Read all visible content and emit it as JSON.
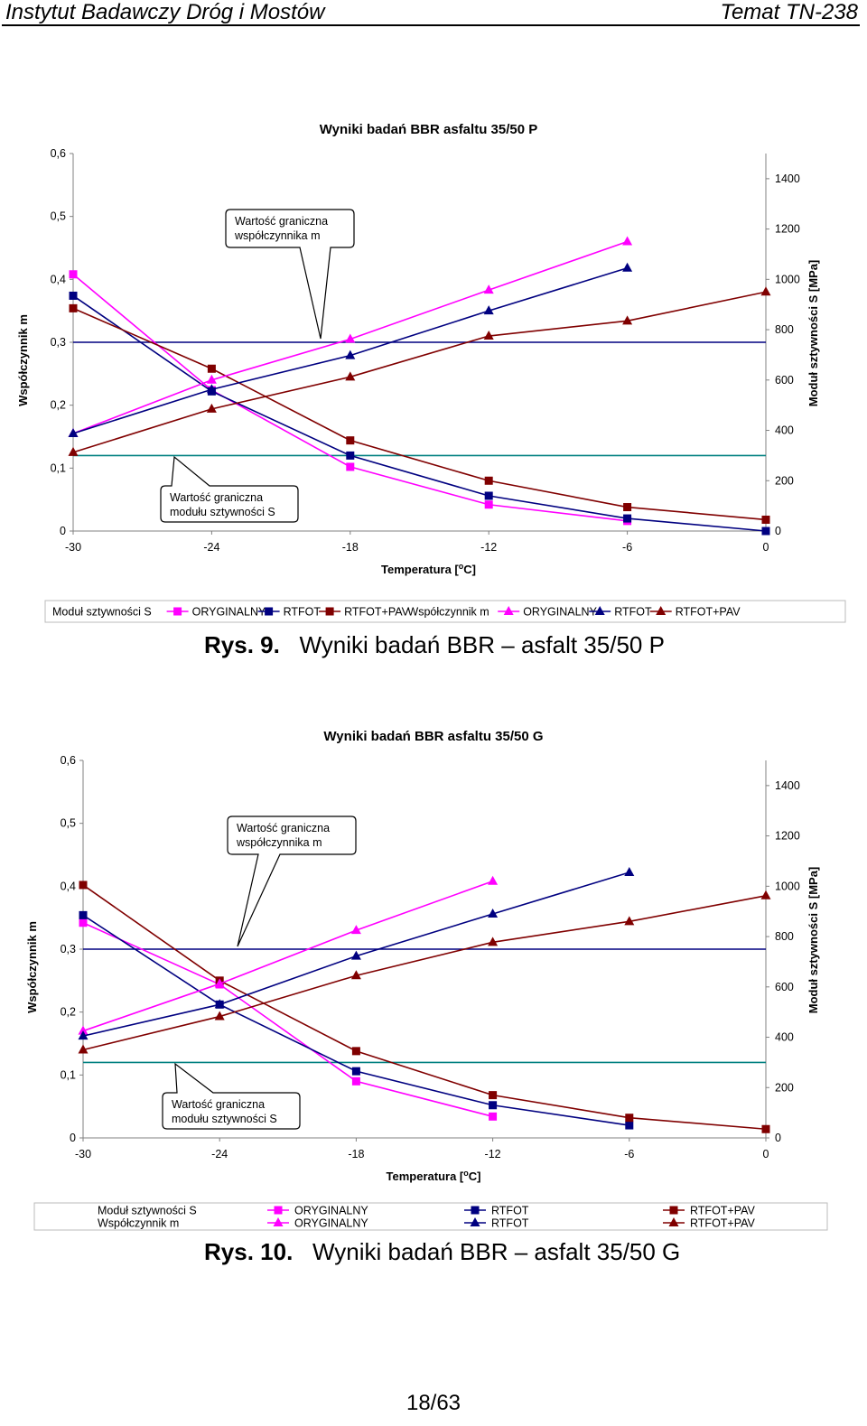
{
  "header": {
    "left": "Instytut Badawczy Dróg i Mostów",
    "right": "Temat TN-238"
  },
  "figures": [
    {
      "number": "Rys. 9.",
      "caption": "Wyniki badań BBR – asfalt 35/50 P"
    },
    {
      "number": "Rys. 10.",
      "caption": "Wyniki badań BBR – asfalt 35/50 G"
    }
  ],
  "footer": {
    "page": "18/63"
  },
  "colors": {
    "oryginalny_S": "#ff00ff",
    "rtfot_S": "#000080",
    "rtfotpav_S": "#800000",
    "oryginalny_m": "#ff00ff",
    "rtfot_m": "#000080",
    "rtfotpav_m": "#800000",
    "limit_m": "#000080",
    "limit_S": "#008080"
  },
  "chart_data": [
    {
      "type": "line",
      "title": "Wyniki badań BBR asfaltu 35/50 P",
      "xlabel": "Temperatura [oC]",
      "ylabel": "Współczynnik m",
      "y2label": "Moduł sztywności S [MPa]",
      "xlim": [
        -30,
        0
      ],
      "ylim": [
        0,
        0.6
      ],
      "y2lim": [
        0,
        1500
      ],
      "x_ticks": [
        "-30",
        "-24",
        "-18",
        "-12",
        "-6",
        "0"
      ],
      "y_ticks": [
        "0",
        "0,1",
        "0,2",
        "0,3",
        "0,4",
        "0,5",
        "0,6"
      ],
      "y2_ticks": [
        "0",
        "200",
        "400",
        "600",
        "800",
        "1000",
        "1200",
        "1400"
      ],
      "grid": false,
      "legend_position": "bottom",
      "legend_layout": "row",
      "legend_group_S": "Moduł sztywności S",
      "legend_group_m": "Współczynnik m",
      "limit_m": 0.3,
      "limit_S": 300,
      "callout_m": [
        "Wartość graniczna",
        "współczynnika m"
      ],
      "callout_S": [
        "Wartość graniczna",
        "modułu sztywności S"
      ],
      "series": [
        {
          "name": "ORYGINALNY",
          "group": "S",
          "axis": "y2",
          "marker": "square",
          "color": "#ff00ff",
          "x": [
            -30,
            -24,
            -18,
            -12,
            -6
          ],
          "y": [
            1020,
            560,
            255,
            105,
            40
          ]
        },
        {
          "name": "RTFOT",
          "group": "S",
          "axis": "y2",
          "marker": "square",
          "color": "#000080",
          "x": [
            -30,
            -24,
            -18,
            -12,
            -6,
            0
          ],
          "y": [
            935,
            555,
            300,
            140,
            50,
            0
          ]
        },
        {
          "name": "RTFOT+PAV",
          "group": "S",
          "axis": "y2",
          "marker": "square",
          "color": "#800000",
          "x": [
            -30,
            -24,
            -18,
            -12,
            -6,
            0
          ],
          "y": [
            885,
            645,
            360,
            200,
            95,
            45
          ]
        },
        {
          "name": "ORYGINALNY",
          "group": "m",
          "axis": "y",
          "marker": "triangle",
          "color": "#ff00ff",
          "x": [
            -30,
            -24,
            -18,
            -12,
            -6
          ],
          "y": [
            0.155,
            0.24,
            0.305,
            0.383,
            0.46
          ]
        },
        {
          "name": "RTFOT",
          "group": "m",
          "axis": "y",
          "marker": "triangle",
          "color": "#000080",
          "x": [
            -30,
            -24,
            -18,
            -12,
            -6
          ],
          "y": [
            0.155,
            0.225,
            0.279,
            0.35,
            0.418
          ]
        },
        {
          "name": "RTFOT+PAV",
          "group": "m",
          "axis": "y",
          "marker": "triangle",
          "color": "#800000",
          "x": [
            -30,
            -24,
            -18,
            -12,
            -6,
            0
          ],
          "y": [
            0.125,
            0.194,
            0.245,
            0.31,
            0.334,
            0.38
          ]
        }
      ]
    },
    {
      "type": "line",
      "title": "Wyniki badań BBR asfaltu 35/50 G",
      "xlabel": "Temperatura [oC]",
      "ylabel": "Współczynnik m",
      "y2label": "Moduł sztywności S [MPa]",
      "xlim": [
        -30,
        0
      ],
      "ylim": [
        0,
        0.6
      ],
      "y2lim": [
        0,
        1500
      ],
      "x_ticks": [
        "-30",
        "-24",
        "-18",
        "-12",
        "-6",
        "0"
      ],
      "y_ticks": [
        "0",
        "0,1",
        "0,2",
        "0,3",
        "0,4",
        "0,5",
        "0,6"
      ],
      "y2_ticks": [
        "0",
        "200",
        "400",
        "600",
        "800",
        "1000",
        "1200",
        "1400"
      ],
      "grid": false,
      "legend_position": "bottom",
      "legend_layout": "grid",
      "legend_group_S": "Moduł sztywności S",
      "legend_group_m": "Współczynnik m",
      "limit_m": 0.3,
      "limit_S": 300,
      "callout_m": [
        "Wartość graniczna",
        "współczynnika m"
      ],
      "callout_S": [
        "Wartość graniczna",
        "modułu sztywności S"
      ],
      "series": [
        {
          "name": "ORYGINALNY",
          "group": "S",
          "axis": "y2",
          "marker": "square",
          "color": "#ff00ff",
          "x": [
            -30,
            -24,
            -18,
            -12
          ],
          "y": [
            855,
            610,
            225,
            85
          ]
        },
        {
          "name": "RTFOT",
          "group": "S",
          "axis": "y2",
          "marker": "square",
          "color": "#000080",
          "x": [
            -30,
            -24,
            -18,
            -12,
            -6
          ],
          "y": [
            885,
            530,
            265,
            130,
            50
          ]
        },
        {
          "name": "RTFOT+PAV",
          "group": "S",
          "axis": "y2",
          "marker": "square",
          "color": "#800000",
          "x": [
            -30,
            -24,
            -18,
            -12,
            -6,
            0
          ],
          "y": [
            1005,
            625,
            345,
            170,
            80,
            35
          ]
        },
        {
          "name": "ORYGINALNY",
          "group": "m",
          "axis": "y",
          "marker": "triangle",
          "color": "#ff00ff",
          "x": [
            -30,
            -24,
            -18,
            -12
          ],
          "y": [
            0.17,
            0.245,
            0.33,
            0.408
          ]
        },
        {
          "name": "RTFOT",
          "group": "m",
          "axis": "y",
          "marker": "triangle",
          "color": "#000080",
          "x": [
            -30,
            -24,
            -18,
            -12,
            -6
          ],
          "y": [
            0.162,
            0.212,
            0.289,
            0.356,
            0.422
          ]
        },
        {
          "name": "RTFOT+PAV",
          "group": "m",
          "axis": "y",
          "marker": "triangle",
          "color": "#800000",
          "x": [
            -30,
            -24,
            -18,
            -12,
            -6,
            0
          ],
          "y": [
            0.14,
            0.193,
            0.258,
            0.311,
            0.344,
            0.385
          ]
        }
      ]
    }
  ]
}
